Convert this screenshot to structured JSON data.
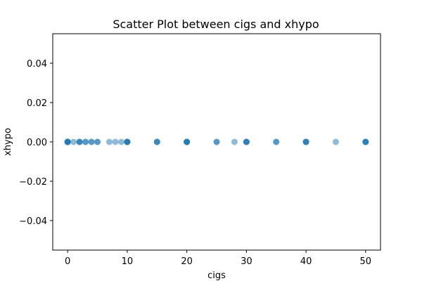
{
  "chart_data": {
    "type": "scatter",
    "title": "Scatter Plot between cigs and xhypo",
    "xlabel": "cigs",
    "ylabel": "xhypo",
    "xlim": [
      -2.5,
      52.5
    ],
    "ylim": [
      -0.055,
      0.055
    ],
    "xticks": [
      0,
      10,
      20,
      30,
      40,
      50
    ],
    "yticks": [
      -0.04,
      -0.02,
      0.0,
      0.02,
      0.04
    ],
    "xtick_labels": [
      "0",
      "10",
      "20",
      "30",
      "40",
      "50"
    ],
    "ytick_labels": [
      "−0.04",
      "−0.02",
      "0.00",
      "0.02",
      "0.04"
    ],
    "grid": false,
    "marker_color": "#1f77b4",
    "marker_alpha": 0.5,
    "x": [
      0,
      1,
      2,
      3,
      4,
      5,
      7,
      8,
      9,
      10,
      15,
      20,
      25,
      28,
      30,
      35,
      40,
      45,
      50
    ],
    "y": [
      0,
      0,
      0,
      0,
      0,
      0,
      0,
      0,
      0,
      0,
      0,
      0,
      0,
      0,
      0,
      0,
      0,
      0,
      0
    ],
    "overlap": [
      6,
      1,
      3,
      2,
      2,
      2,
      1,
      1,
      1,
      5,
      3,
      5,
      2,
      1,
      4,
      2,
      4,
      1,
      4
    ]
  }
}
